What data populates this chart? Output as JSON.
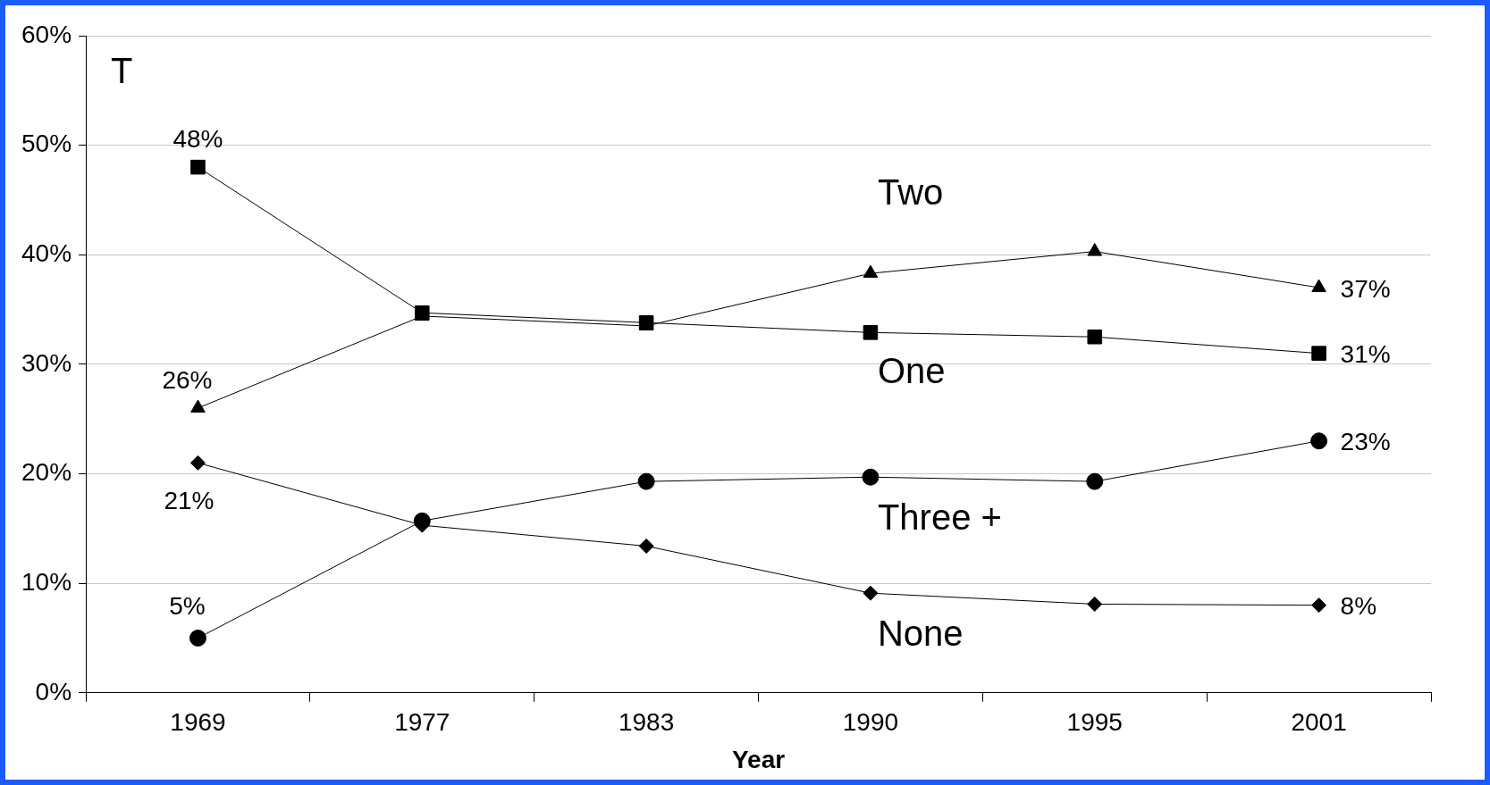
{
  "chart_data": {
    "type": "line",
    "xlabel": "Year",
    "categories": [
      "1969",
      "1977",
      "1983",
      "1990",
      "1995",
      "2001"
    ],
    "ylim": [
      0,
      60
    ],
    "yticks": [
      {
        "value": 0,
        "label": "0%"
      },
      {
        "value": 10,
        "label": "10%"
      },
      {
        "value": 20,
        "label": "20%"
      },
      {
        "value": 30,
        "label": "30%"
      },
      {
        "value": 40,
        "label": "40%"
      },
      {
        "value": 50,
        "label": "50%"
      },
      {
        "value": 60,
        "label": "60%"
      }
    ],
    "grid": "y",
    "legend": false,
    "line_style": "solid",
    "annotations": [
      "T"
    ],
    "series": [
      {
        "name": "Two",
        "color": "#000000",
        "marker": "triangle",
        "values": [
          26,
          34.4,
          33.5,
          38.3,
          40.3,
          37
        ],
        "value_labels": [
          "26%",
          null,
          null,
          null,
          null,
          "37%"
        ]
      },
      {
        "name": "One",
        "color": "#000000",
        "marker": "square",
        "values": [
          48,
          34.7,
          33.8,
          32.9,
          32.5,
          31
        ],
        "value_labels": [
          "48%",
          null,
          null,
          null,
          null,
          "31%"
        ]
      },
      {
        "name": "Three +",
        "color": "#000000",
        "marker": "circle",
        "values": [
          5,
          15.7,
          19.3,
          19.7,
          19.3,
          23
        ],
        "value_labels": [
          "5%",
          null,
          null,
          null,
          null,
          "23%"
        ]
      },
      {
        "name": "None",
        "color": "#000000",
        "marker": "diamond",
        "values": [
          21,
          15.3,
          13.4,
          9.1,
          8.1,
          8
        ],
        "value_labels": [
          "21%",
          null,
          null,
          null,
          null,
          "8%"
        ]
      }
    ]
  }
}
